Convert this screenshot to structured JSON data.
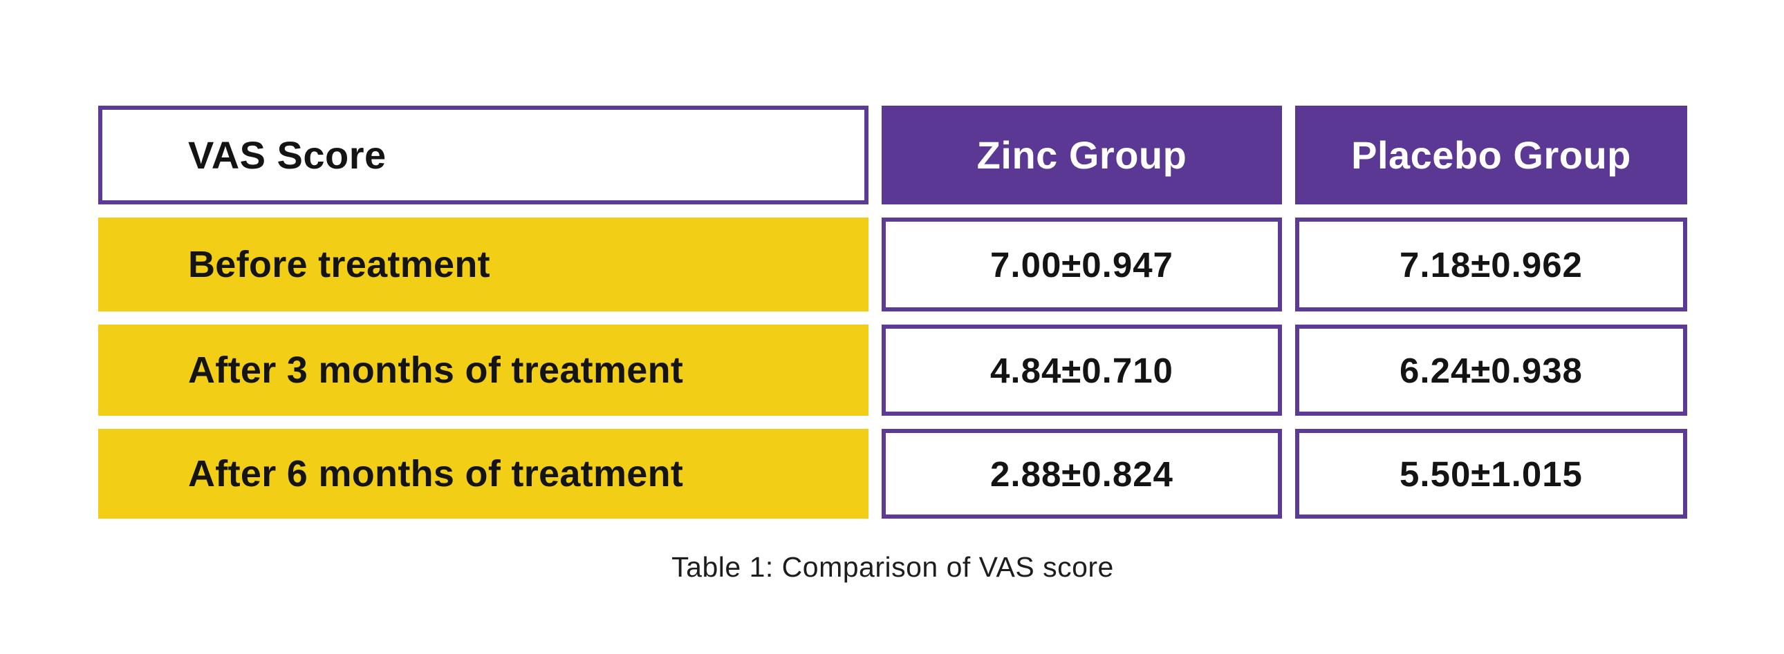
{
  "colors": {
    "purple": "#5B3894",
    "purple_border": "#5C3A96",
    "yellow": "#F2CE16",
    "background": "#FFFFFF",
    "text": "#141414"
  },
  "table": {
    "corner_label": "VAS Score",
    "column_headers": [
      "Zinc Group",
      "Placebo Group"
    ],
    "rows": [
      {
        "label": "Before treatment",
        "zinc": "7.00±0.947",
        "placebo": "7.18±0.962"
      },
      {
        "label": "After 3 months of treatment",
        "zinc": "4.84±0.710",
        "placebo": "6.24±0.938"
      },
      {
        "label": "After 6 months of treatment",
        "zinc": "2.88±0.824",
        "placebo": "5.50±1.015"
      }
    ],
    "caption": "Table 1: Comparison of VAS score"
  },
  "chart_data": {
    "type": "table",
    "title": "Table 1: Comparison of VAS score",
    "columns": [
      "VAS Score",
      "Zinc Group",
      "Placebo Group"
    ],
    "rows": [
      [
        "Before treatment",
        "7.00±0.947",
        "7.18±0.962"
      ],
      [
        "After 3 months of treatment",
        "4.84±0.710",
        "6.24±0.938"
      ],
      [
        "After 6 months of treatment",
        "2.88±0.824",
        "5.50±1.015"
      ]
    ],
    "series": [
      {
        "name": "Zinc Group",
        "mean": [
          7.0,
          4.84,
          2.88
        ],
        "sd": [
          0.947,
          0.71,
          0.824
        ]
      },
      {
        "name": "Placebo Group",
        "mean": [
          7.18,
          6.24,
          5.5
        ],
        "sd": [
          0.962,
          0.938,
          1.015
        ]
      }
    ],
    "categories": [
      "Before treatment",
      "After 3 months of treatment",
      "After 6 months of treatment"
    ]
  }
}
